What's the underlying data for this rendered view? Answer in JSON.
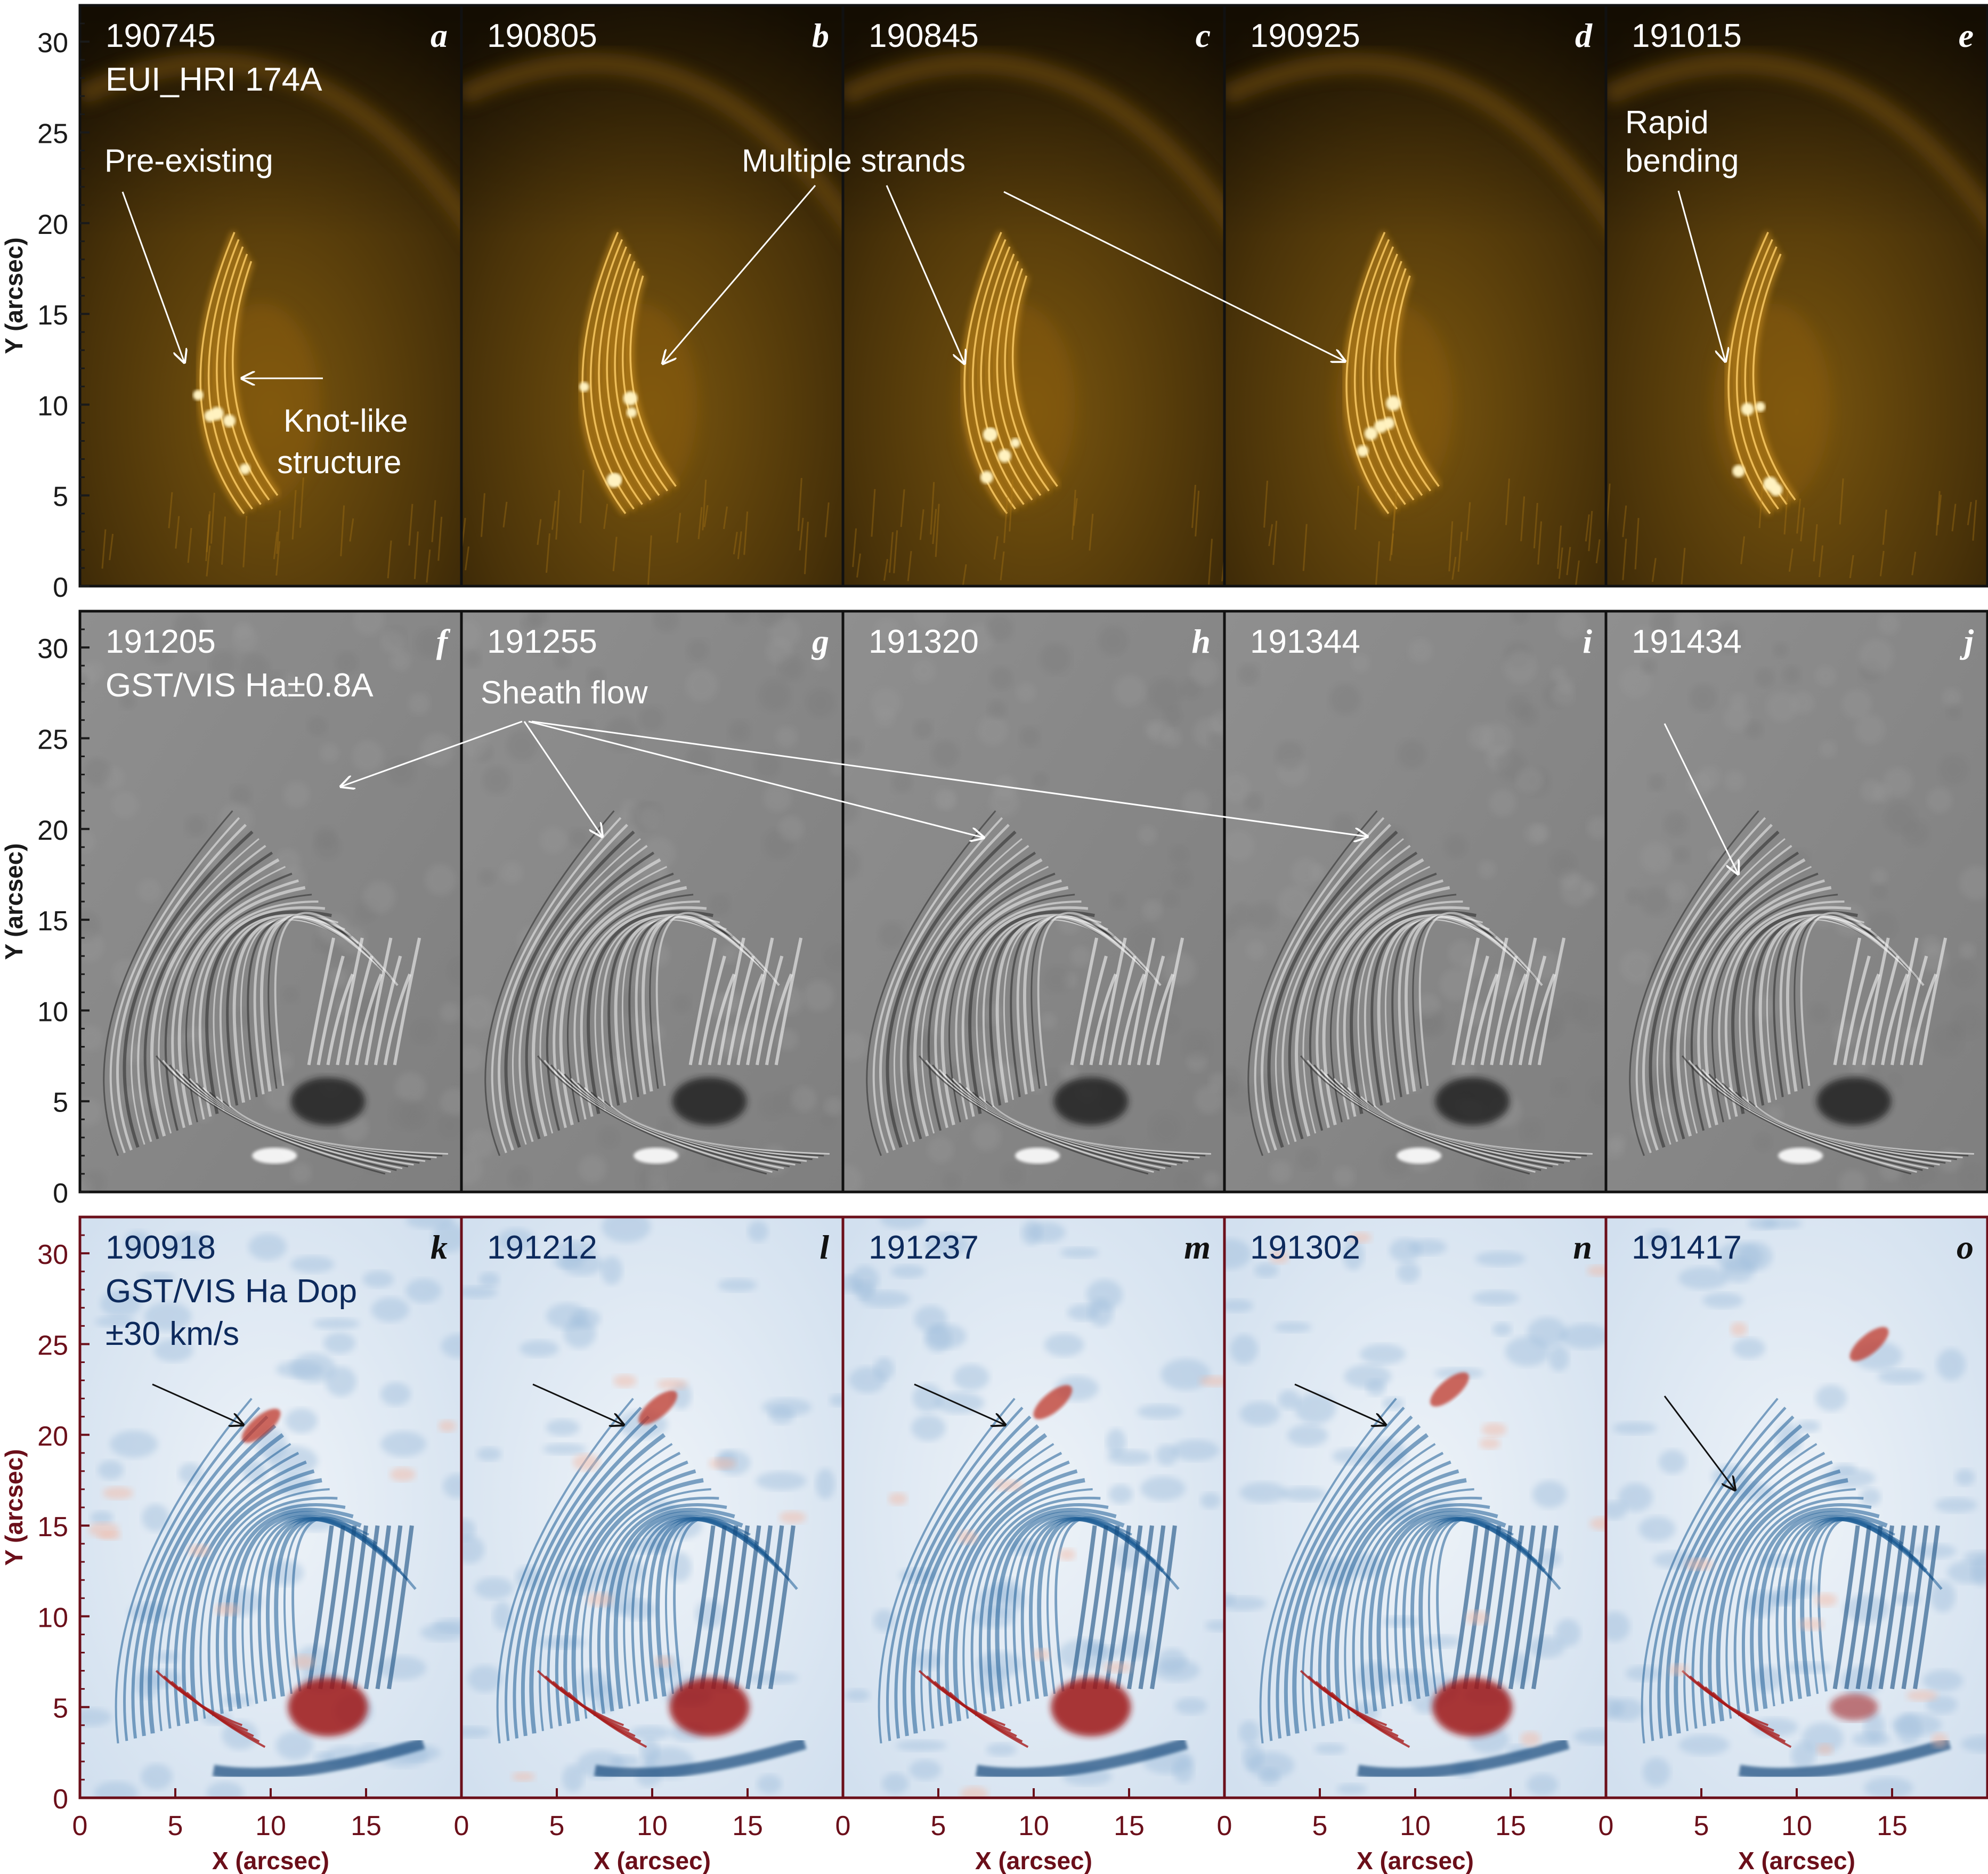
{
  "figure": {
    "y_axis_label": "Y (arcsec)",
    "x_axis_label": "X (arcsec)",
    "y_ticks": [
      0,
      5,
      10,
      15,
      20,
      25,
      30
    ],
    "x_ticks": [
      0,
      5,
      10,
      15
    ],
    "x_range_arcsec": [
      0,
      20
    ],
    "y_range_arcsec": [
      0,
      32
    ]
  },
  "rows": [
    {
      "id": "eui",
      "instrument_label": "EUI_HRI 174A",
      "colormap": "black-to-orange (AIA 171 style)",
      "frame_color": "#111111",
      "panels": [
        {
          "letter": "a",
          "time": "190745"
        },
        {
          "letter": "b",
          "time": "190805"
        },
        {
          "letter": "c",
          "time": "190845"
        },
        {
          "letter": "d",
          "time": "190925"
        },
        {
          "letter": "e",
          "time": "191015"
        }
      ]
    },
    {
      "id": "vis",
      "instrument_label": "GST/VIS Ha±0.8A",
      "colormap": "grayscale",
      "frame_color": "#111111",
      "panels": [
        {
          "letter": "f",
          "time": "191205"
        },
        {
          "letter": "g",
          "time": "191255"
        },
        {
          "letter": "h",
          "time": "191320"
        },
        {
          "letter": "i",
          "time": "191344"
        },
        {
          "letter": "j",
          "time": "191434"
        }
      ]
    },
    {
      "id": "dop",
      "instrument_label_lines": [
        "GST/VIS Ha Dop",
        "±30 km/s"
      ],
      "colormap": "blue-white-red",
      "frame_color": "#6b0f1a",
      "text_color": "#0d2a5c",
      "panels": [
        {
          "letter": "k",
          "time": "190918"
        },
        {
          "letter": "l",
          "time": "191212"
        },
        {
          "letter": "m",
          "time": "191237"
        },
        {
          "letter": "n",
          "time": "191302"
        },
        {
          "letter": "o",
          "time": "191417"
        }
      ]
    }
  ],
  "annotations": {
    "pre_existing": "Pre-existing",
    "knot_line1": "Knot-like",
    "knot_line2": "structure",
    "multiple_strands": "Multiple strands",
    "rapid_line1": "Rapid",
    "rapid_line2": "bending",
    "sheath_flow": "Sheath flow"
  },
  "colors": {
    "eui_bg": "#2c1e05",
    "eui_bright": "#ffb52a",
    "vis_bg": "#8c8c8c",
    "dop_blue": "#1e5d96",
    "dop_red": "#a81c1c",
    "dop_bg": "#e6eef6",
    "annotation_white": "#ffffff",
    "annotation_black": "#111111",
    "axis_dark": "#1a1a1a",
    "axis_maroon": "#6b0f1a"
  }
}
